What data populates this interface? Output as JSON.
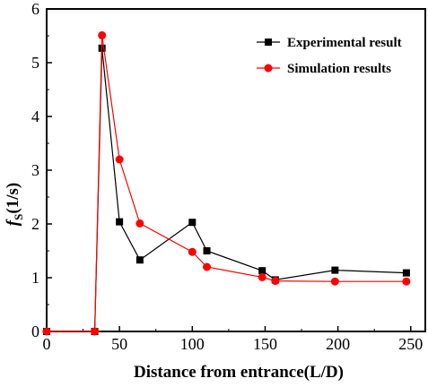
{
  "chart_data": {
    "type": "line",
    "xlabel": "Distance from entrance(L/D)",
    "ylabel_main": "f",
    "ylabel_sub": "S",
    "ylabel_unit": "(1/s)",
    "xlim": [
      0,
      260
    ],
    "ylim": [
      0,
      6
    ],
    "xticks": [
      0,
      50,
      100,
      150,
      200,
      250
    ],
    "yticks": [
      0,
      1,
      2,
      3,
      4,
      5,
      6
    ],
    "legend_position": "top-right",
    "series": [
      {
        "name": "Experimental result",
        "color": "#000000",
        "marker": "square",
        "points": [
          [
            0,
            0
          ],
          [
            33,
            0
          ],
          [
            38,
            5.27
          ],
          [
            50,
            2.04
          ],
          [
            64,
            1.33
          ],
          [
            100,
            2.03
          ],
          [
            110,
            1.5
          ],
          [
            148,
            1.13
          ],
          [
            157,
            0.96
          ],
          [
            198,
            1.14
          ],
          [
            247,
            1.09
          ]
        ]
      },
      {
        "name": "Simulation results",
        "color": "#ff0000",
        "marker": "circle",
        "points": [
          [
            0,
            0
          ],
          [
            33,
            0
          ],
          [
            38,
            5.51
          ],
          [
            50,
            3.2
          ],
          [
            64,
            2.01
          ],
          [
            100,
            1.48
          ],
          [
            110,
            1.2
          ],
          [
            148,
            1.01
          ],
          [
            157,
            0.94
          ],
          [
            198,
            0.93
          ],
          [
            247,
            0.93
          ]
        ]
      }
    ]
  }
}
